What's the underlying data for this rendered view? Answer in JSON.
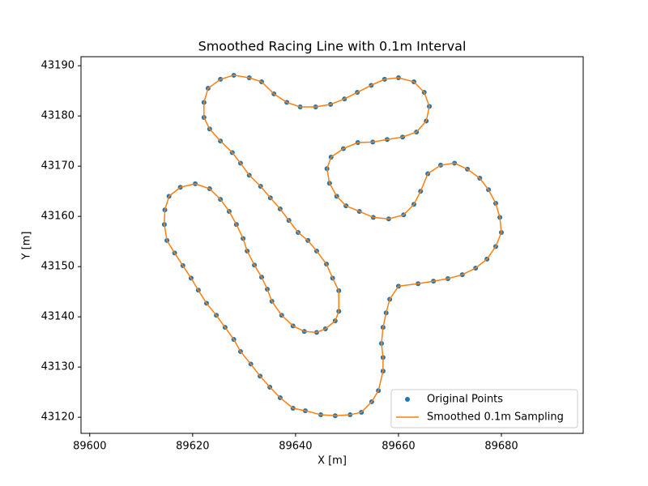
{
  "chart_data": {
    "type": "scatter",
    "title": "Smoothed Racing Line with 0.1m Interval",
    "x_label": "X [m]",
    "y_label": "Y [m]",
    "xlim": [
      89598.3,
      89695.9
    ],
    "ylim": [
      43116.8,
      43191.8
    ],
    "xticks": [
      89600,
      89620,
      89640,
      89660,
      89680
    ],
    "yticks": [
      43120,
      43130,
      43140,
      43150,
      43160,
      43170,
      43180,
      43190
    ],
    "legend": "lower right",
    "series": [
      {
        "name": "Original Points",
        "type": "scatter",
        "color": "#1f77b4",
        "x": [
          89622.2,
          89623.0,
          89625.4,
          89628.0,
          89631.0,
          89633.4,
          89635.8,
          89638.3,
          89640.9,
          89643.9,
          89646.8,
          89649.5,
          89652.0,
          89654.7,
          89657.3,
          89660.0,
          89663.0,
          89665.0,
          89666.0,
          89665.4,
          89663.5,
          89660.8,
          89657.8,
          89655.0,
          89652.1,
          89649.3,
          89646.9,
          89646.1,
          89646.6,
          89648.0,
          89649.8,
          89652.4,
          89655.1,
          89658.1,
          89661.0,
          89663.0,
          89664.3,
          89665.7,
          89668.2,
          89670.9,
          89673.4,
          89675.8,
          89677.5,
          89678.9,
          89679.7,
          89680.0,
          89678.9,
          89677.2,
          89675.0,
          89672.4,
          89669.6,
          89666.8,
          89663.8,
          89660.0,
          89658.3,
          89657.6,
          89657.0,
          89656.7,
          89657.0,
          89657.0,
          89656.1,
          89654.8,
          89652.8,
          89650.6,
          89647.7,
          89644.9,
          89641.9,
          89639.5,
          89637.0,
          89635.0,
          89633.1,
          89631.3,
          89629.3,
          89628.0,
          89626.3,
          89624.6,
          89622.7,
          89621.1,
          89619.7,
          89618.1,
          89616.5,
          89615.0,
          89614.5,
          89614.6,
          89615.4,
          89617.6,
          89620.5,
          89623.3,
          89625.4,
          89627.1,
          89628.5,
          89629.8,
          89630.6,
          89632.0,
          89633.4,
          89634.5,
          89635.4,
          89637.3,
          89639.5,
          89641.7,
          89644.1,
          89645.8,
          89647.7,
          89648.4,
          89648.4,
          89647.2,
          89646.0,
          89644.1,
          89642.4,
          89640.5,
          89638.7,
          89637.0,
          89635.1,
          89633.2,
          89631.0,
          89629.3,
          89627.7,
          89625.4,
          89623.3,
          89622.2
        ],
        "y": [
          43182.7,
          43185.5,
          43187.3,
          43188.1,
          43187.6,
          43186.8,
          43184.4,
          43182.7,
          43181.8,
          43181.8,
          43182.3,
          43183.4,
          43184.7,
          43186.1,
          43187.3,
          43187.6,
          43186.8,
          43184.7,
          43181.9,
          43179.0,
          43176.8,
          43175.8,
          43175.3,
          43174.8,
          43174.7,
          43173.5,
          43171.8,
          43169.5,
          43166.6,
          43164.0,
          43162.1,
          43161.0,
          43159.8,
          43159.5,
          43160.3,
          43162.4,
          43165.0,
          43168.5,
          43170.2,
          43170.6,
          43169.4,
          43167.6,
          43165.3,
          43162.6,
          43159.8,
          43156.8,
          43154.0,
          43151.5,
          43149.7,
          43148.4,
          43147.6,
          43147.1,
          43146.6,
          43146.1,
          43143.5,
          43140.8,
          43137.9,
          43134.7,
          43131.9,
          43129.2,
          43125.3,
          43123.1,
          43121.0,
          43120.5,
          43120.3,
          43120.5,
          43121.3,
          43121.8,
          43123.9,
          43126.0,
          43128.2,
          43130.6,
          43133.1,
          43135.5,
          43137.9,
          43140.3,
          43142.7,
          43145.3,
          43147.7,
          43150.2,
          43152.7,
          43155.2,
          43158.4,
          43161.3,
          43164.0,
          43165.8,
          43166.5,
          43165.5,
          43163.4,
          43161.0,
          43158.4,
          43155.6,
          43153.1,
          43150.3,
          43147.9,
          43145.5,
          43143.1,
          43140.3,
          43138.2,
          43137.1,
          43136.9,
          43137.6,
          43139.2,
          43141.1,
          43145.2,
          43147.7,
          43150.5,
          43153.1,
          43155.2,
          43156.8,
          43159.2,
          43161.5,
          43163.7,
          43166.0,
          43168.2,
          43170.6,
          43172.7,
          43175.0,
          43177.4,
          43179.7
        ]
      },
      {
        "name": "Smoothed 0.1m Sampling",
        "type": "line",
        "color": "#ff7f0e",
        "x": [
          89622.2,
          89623.0,
          89625.4,
          89628.0,
          89631.0,
          89633.4,
          89635.8,
          89638.3,
          89640.9,
          89643.9,
          89646.8,
          89649.5,
          89652.0,
          89654.7,
          89657.3,
          89660.0,
          89663.0,
          89665.0,
          89666.0,
          89665.4,
          89663.5,
          89660.8,
          89657.8,
          89655.0,
          89652.1,
          89649.3,
          89646.9,
          89646.1,
          89646.6,
          89648.0,
          89649.8,
          89652.4,
          89655.1,
          89658.1,
          89661.0,
          89663.0,
          89664.3,
          89665.7,
          89668.2,
          89670.9,
          89673.4,
          89675.8,
          89677.5,
          89678.9,
          89679.7,
          89680.0,
          89678.9,
          89677.2,
          89675.0,
          89672.4,
          89669.6,
          89666.8,
          89663.8,
          89660.0,
          89658.3,
          89657.6,
          89657.0,
          89656.7,
          89657.0,
          89657.0,
          89656.1,
          89654.8,
          89652.8,
          89650.6,
          89647.7,
          89644.9,
          89641.9,
          89639.5,
          89637.0,
          89635.0,
          89633.1,
          89631.3,
          89629.3,
          89628.0,
          89626.3,
          89624.6,
          89622.7,
          89621.1,
          89619.7,
          89618.1,
          89616.5,
          89615.0,
          89614.5,
          89614.6,
          89615.4,
          89617.6,
          89620.5,
          89623.3,
          89625.4,
          89627.1,
          89628.5,
          89629.8,
          89630.6,
          89632.0,
          89633.4,
          89634.5,
          89635.4,
          89637.3,
          89639.5,
          89641.7,
          89644.1,
          89645.8,
          89647.7,
          89648.4,
          89648.4,
          89647.2,
          89646.0,
          89644.1,
          89642.4,
          89640.5,
          89638.7,
          89637.0,
          89635.1,
          89633.2,
          89631.0,
          89629.3,
          89627.7,
          89625.4,
          89623.3,
          89622.2
        ],
        "y": [
          43182.7,
          43185.5,
          43187.3,
          43188.1,
          43187.6,
          43186.8,
          43184.4,
          43182.7,
          43181.8,
          43181.8,
          43182.3,
          43183.4,
          43184.7,
          43186.1,
          43187.3,
          43187.6,
          43186.8,
          43184.7,
          43181.9,
          43179.0,
          43176.8,
          43175.8,
          43175.3,
          43174.8,
          43174.7,
          43173.5,
          43171.8,
          43169.5,
          43166.6,
          43164.0,
          43162.1,
          43161.0,
          43159.8,
          43159.5,
          43160.3,
          43162.4,
          43165.0,
          43168.5,
          43170.2,
          43170.6,
          43169.4,
          43167.6,
          43165.3,
          43162.6,
          43159.8,
          43156.8,
          43154.0,
          43151.5,
          43149.7,
          43148.4,
          43147.6,
          43147.1,
          43146.6,
          43146.1,
          43143.5,
          43140.8,
          43137.9,
          43134.7,
          43131.9,
          43129.2,
          43125.3,
          43123.1,
          43121.0,
          43120.5,
          43120.3,
          43120.5,
          43121.3,
          43121.8,
          43123.9,
          43126.0,
          43128.2,
          43130.6,
          43133.1,
          43135.5,
          43137.9,
          43140.3,
          43142.7,
          43145.3,
          43147.7,
          43150.2,
          43152.7,
          43155.2,
          43158.4,
          43161.3,
          43164.0,
          43165.8,
          43166.5,
          43165.5,
          43163.4,
          43161.0,
          43158.4,
          43155.6,
          43153.1,
          43150.3,
          43147.9,
          43145.5,
          43143.1,
          43140.3,
          43138.2,
          43137.1,
          43136.9,
          43137.6,
          43139.2,
          43141.1,
          43145.2,
          43147.7,
          43150.5,
          43153.1,
          43155.2,
          43156.8,
          43159.2,
          43161.5,
          43163.7,
          43166.0,
          43168.2,
          43170.6,
          43172.7,
          43175.0,
          43177.4,
          43179.7
        ]
      }
    ]
  }
}
